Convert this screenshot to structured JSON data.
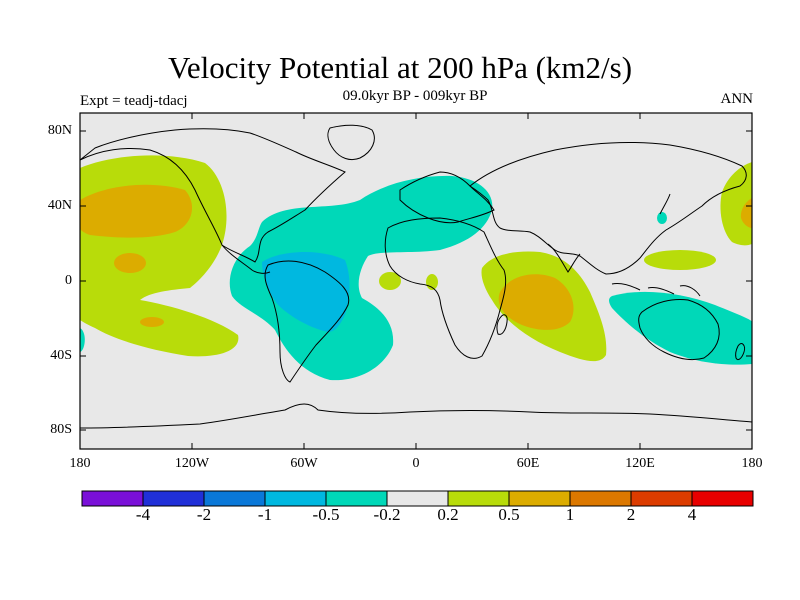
{
  "title": "Velocity Potential at 200 hPa (km2/s)",
  "subtitle": "09.0kyr BP - 009kyr BP",
  "left_label": "Expt = teadj-tdacj",
  "right_label": "ANN",
  "lat_ticks": [
    "80N",
    "40N",
    "0",
    "40S",
    "80S"
  ],
  "lon_ticks": [
    "180",
    "120W",
    "60W",
    "0",
    "60E",
    "120E",
    "180"
  ],
  "colorbar": {
    "colors": [
      "#7a10d8",
      "#2030d8",
      "#0a78d8",
      "#00b8e0",
      "#00d8b8",
      "#e8e8e8",
      "#b8dc0a",
      "#dcac00",
      "#dc7800",
      "#dc3c00",
      "#e80000"
    ],
    "labels": [
      "-4",
      "-2",
      "-1",
      "-0.5",
      "-0.2",
      "0.2",
      "0.5",
      "1",
      "2",
      "4"
    ]
  },
  "colors": {
    "background": "#e8e8e8",
    "neg_weak": "#00d8b8",
    "neg_mid": "#00b8e0",
    "pos_weak": "#b8dc0a",
    "pos_mid": "#dcac00",
    "coast": "#000000"
  }
}
